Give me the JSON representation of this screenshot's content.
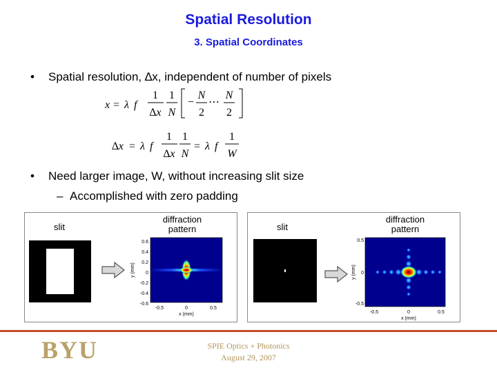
{
  "slide": {
    "title": "Spatial Resolution",
    "subtitle": "3. Spatial Coordinates"
  },
  "bullets": {
    "b1": "Spatial resolution, ∆x,  independent of number of pixels",
    "b2": "Need larger image, W, without increasing slit size",
    "b2_sub": "Accomplished with zero padding",
    "bullet_char": "•",
    "dash_char": "–"
  },
  "equations": {
    "eq1": "x = λ f (1/∆x)(1/N)[−N/2 ⋯ N/2]",
    "eq2": "∆x = λ f (1/∆x)(1/N) = λ f (1/W)"
  },
  "figures": {
    "left": {
      "slit_label": "slit",
      "pattern_label_1": "diffraction",
      "pattern_label_2": "pattern",
      "y_axis_label": "y (mm)",
      "x_axis_label": "x (mm)",
      "y_ticks": [
        "0.6",
        "0.4",
        "0.2",
        "0",
        "-0.2",
        "-0.4",
        "-0.6"
      ],
      "x_ticks": [
        "-0.5",
        "0",
        "0.5"
      ]
    },
    "right": {
      "slit_label": "slit",
      "pattern_label_1": "diffraction",
      "pattern_label_2": "pattern",
      "y_axis_label": "y (mm)",
      "x_axis_label": "x (mm)",
      "y_ticks": [
        "0.5",
        "0",
        "-0.5"
      ],
      "x_ticks": [
        "-0.5",
        "0",
        "0.5"
      ]
    }
  },
  "footer": {
    "logo": "BYU",
    "line1": "SPIE Optics + Photonics",
    "line2": "August 29, 2007"
  },
  "colors": {
    "title": "#1a1adc",
    "footer_rule": "#c64b2c",
    "logo": "#b8a26a",
    "plot_background": "#00008f"
  }
}
